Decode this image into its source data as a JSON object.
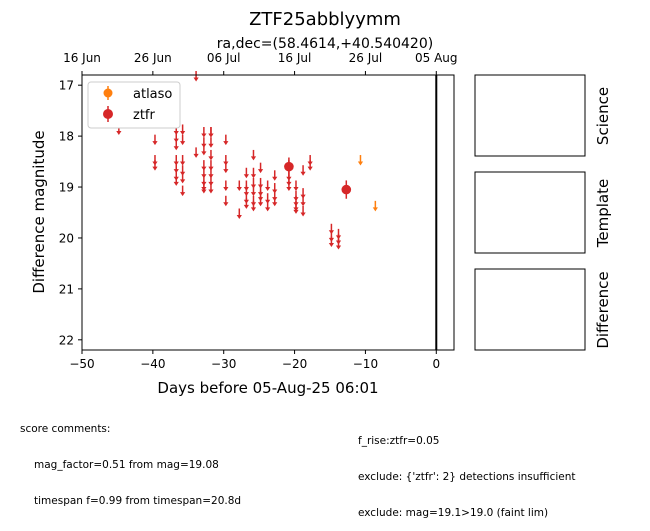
{
  "chart_data": {
    "type": "scatter",
    "title": "ZTF25abblyymm",
    "subtitle": "ra,dec=(58.4614,+40.540420)",
    "xlabel": "Days before 05-Aug-25 06:01",
    "ylabel": "Difference magnitude",
    "xlim": [
      -50,
      2.5
    ],
    "ylim": [
      22.2,
      16.8
    ],
    "y_inverted": true,
    "xticks": [
      -50,
      -40,
      -30,
      -20,
      -10,
      0
    ],
    "xtick_labels": [
      "−50",
      "−40",
      "−30",
      "−20",
      "−10",
      "0"
    ],
    "yticks": [
      17,
      18,
      19,
      20,
      21,
      22
    ],
    "top_axis": {
      "ticks": [
        -50,
        -40,
        -30,
        -20,
        -10,
        0
      ],
      "labels": [
        "16 Jun",
        "26 Jun",
        "06 Jul",
        "16 Jul",
        "26 Jul",
        "05 Aug"
      ]
    },
    "vline_x": 0,
    "legend": {
      "placement": "top-left"
    },
    "series": [
      {
        "name": "atlaso",
        "color": "#ff7f0e",
        "marker": "circle",
        "upper_limits": [
          -10.7,
          -8.6
        ],
        "upper_limit_mags": [
          18.45,
          19.35
        ],
        "detections": []
      },
      {
        "name": "ztfr",
        "color": "#d62728",
        "marker": "circle",
        "detections": [
          {
            "x": -20.8,
            "y": 18.6,
            "err": 0.18
          },
          {
            "x": -12.7,
            "y": 19.05,
            "err": 0.18
          }
        ],
        "upper_limits": [
          -44.8,
          -39.7,
          -39.7,
          -39.7,
          -36.7,
          -36.7,
          -36.7,
          -36.7,
          -36.7,
          -36.7,
          -36.7,
          -35.8,
          -35.8,
          -35.8,
          -35.8,
          -35.8,
          -35.8,
          -33.9,
          -33.9,
          -32.8,
          -32.8,
          -32.8,
          -32.8,
          -32.8,
          -32.8,
          -32.8,
          -32.8,
          -31.8,
          -31.8,
          -31.8,
          -31.8,
          -31.8,
          -31.8,
          -31.8,
          -31.8,
          -29.7,
          -29.7,
          -29.7,
          -29.7,
          -29.7,
          -27.8,
          -27.8,
          -26.8,
          -26.8,
          -26.8,
          -26.8,
          -26.8,
          -25.8,
          -25.8,
          -25.8,
          -25.8,
          -25.8,
          -25.8,
          -24.8,
          -24.8,
          -24.8,
          -24.8,
          -24.8,
          -23.8,
          -23.8,
          -23.8,
          -22.8,
          -22.8,
          -22.8,
          -22.8,
          -20.8,
          -20.8,
          -20.8,
          -20.8,
          -19.8,
          -19.8,
          -19.8,
          -19.8,
          -19.8,
          -18.8,
          -18.8,
          -18.8,
          -18.8,
          -17.8,
          -17.8,
          -14.8,
          -14.8,
          -14.8,
          -13.8,
          -13.8,
          -13.8
        ],
        "upper_limit_mags": [
          17.85,
          18.05,
          18.45,
          18.55,
          17.85,
          18.0,
          18.15,
          18.45,
          18.6,
          18.75,
          18.85,
          17.85,
          18.05,
          18.65,
          18.8,
          19.05,
          18.45,
          16.8,
          18.3,
          17.9,
          18.1,
          18.25,
          18.55,
          18.7,
          18.85,
          18.95,
          19.0,
          17.9,
          18.1,
          18.35,
          18.55,
          18.7,
          18.85,
          19.0,
          17.9,
          18.05,
          18.45,
          18.6,
          18.95,
          19.25,
          18.95,
          19.5,
          18.7,
          18.95,
          19.05,
          19.2,
          19.3,
          18.35,
          18.7,
          18.9,
          19.05,
          19.25,
          19.35,
          18.6,
          18.9,
          19.05,
          19.15,
          19.25,
          18.95,
          19.2,
          19.35,
          18.75,
          19.0,
          19.15,
          19.25,
          18.55,
          18.75,
          18.85,
          18.95,
          18.95,
          19.15,
          19.25,
          19.35,
          19.4,
          18.65,
          19.1,
          19.25,
          19.45,
          18.45,
          18.55,
          19.8,
          19.95,
          20.05,
          19.9,
          20.0,
          20.1
        ]
      }
    ]
  },
  "panels": {
    "science_label": "Science",
    "template_label": "Template",
    "difference_label": "Difference"
  },
  "comments": {
    "header": "score comments:",
    "left": [
      "mag_factor=0.51 from mag=19.08",
      "timespan f=0.99 from timespan=20.8d"
    ],
    "right": [
      "f_rise:ztfr=0.05",
      "exclude: {'ztfr': 2} detections insufficient",
      "exclude: mag=19.1>19.0 (faint lim)"
    ]
  }
}
